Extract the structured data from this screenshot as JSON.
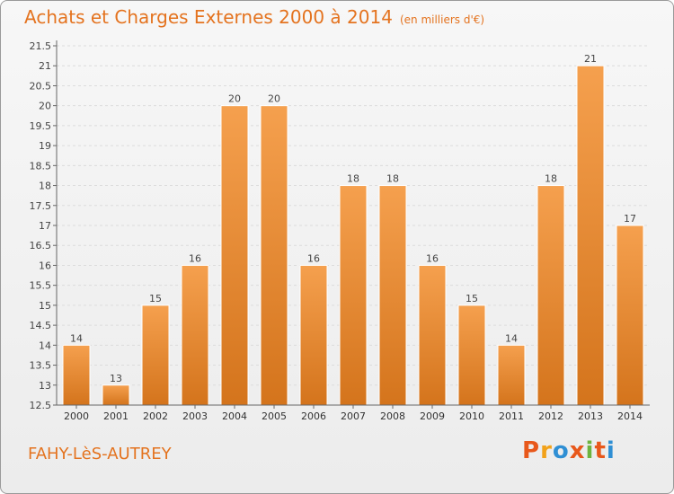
{
  "header": {
    "title": "Achats et Charges Externes 2000 à 2014",
    "subtitle": "(en milliers d'€)"
  },
  "footer": {
    "location": "FAHY-LèS-AUTREY",
    "logo": "Proxiti"
  },
  "colors": {
    "accent": "#e4731f",
    "bar_top": "#f5a04e",
    "bar_bottom": "#d4741c",
    "logo_letters": [
      "#e8581b",
      "#f2a21a",
      "#2f8fd4",
      "#e8581b",
      "#6db33f",
      "#e8581b",
      "#2f8fd4"
    ]
  },
  "chart_data": {
    "type": "bar",
    "title": "Achats et Charges Externes 2000 à 2014",
    "subtitle": "(en milliers d'€)",
    "categories": [
      "2000",
      "2001",
      "2002",
      "2003",
      "2004",
      "2005",
      "2006",
      "2007",
      "2008",
      "2009",
      "2010",
      "2011",
      "2012",
      "2013",
      "2014"
    ],
    "values": [
      14,
      13,
      15,
      16,
      20,
      20,
      16,
      18,
      18,
      16,
      15,
      14,
      18,
      21,
      17
    ],
    "ylim": [
      12.5,
      21.5
    ],
    "yticks": [
      "12.5",
      "13",
      "13.5",
      "14",
      "14.5",
      "15",
      "15.5",
      "16",
      "16.5",
      "17",
      "17.5",
      "18",
      "18.5",
      "19",
      "19.5",
      "20",
      "20.5",
      "21",
      "21.5"
    ],
    "grid": true
  }
}
